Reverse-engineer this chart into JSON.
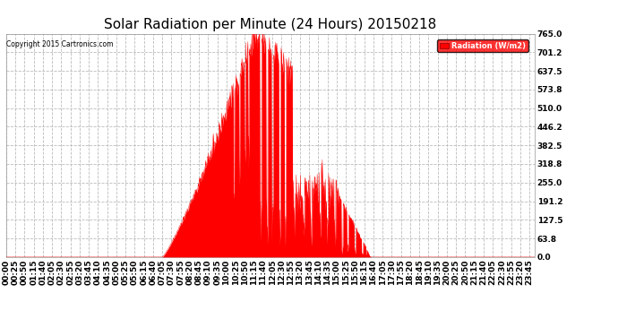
{
  "title": "Solar Radiation per Minute (24 Hours) 20150218",
  "copyright_text": "Copyright 2015 Cartronics.com",
  "legend_label": "Radiation (W/m2)",
  "y_ticks": [
    0.0,
    63.8,
    127.5,
    191.2,
    255.0,
    318.8,
    382.5,
    446.2,
    510.0,
    573.8,
    637.5,
    701.2,
    765.0
  ],
  "y_max": 765.0,
  "y_min": 0.0,
  "background_color": "#ffffff",
  "plot_bg_color": "#ffffff",
  "grid_color": "#bbbbbb",
  "fill_color": "#ff0000",
  "line_color": "#ff0000",
  "zero_line_color": "#ff0000",
  "title_fontsize": 11,
  "tick_fontsize": 6.5,
  "x_tick_interval_minutes": 25,
  "total_minutes": 1440,
  "sunrise_minute": 425,
  "sunset_minute": 1025,
  "peak_minute": 675,
  "peak_value": 765.0
}
